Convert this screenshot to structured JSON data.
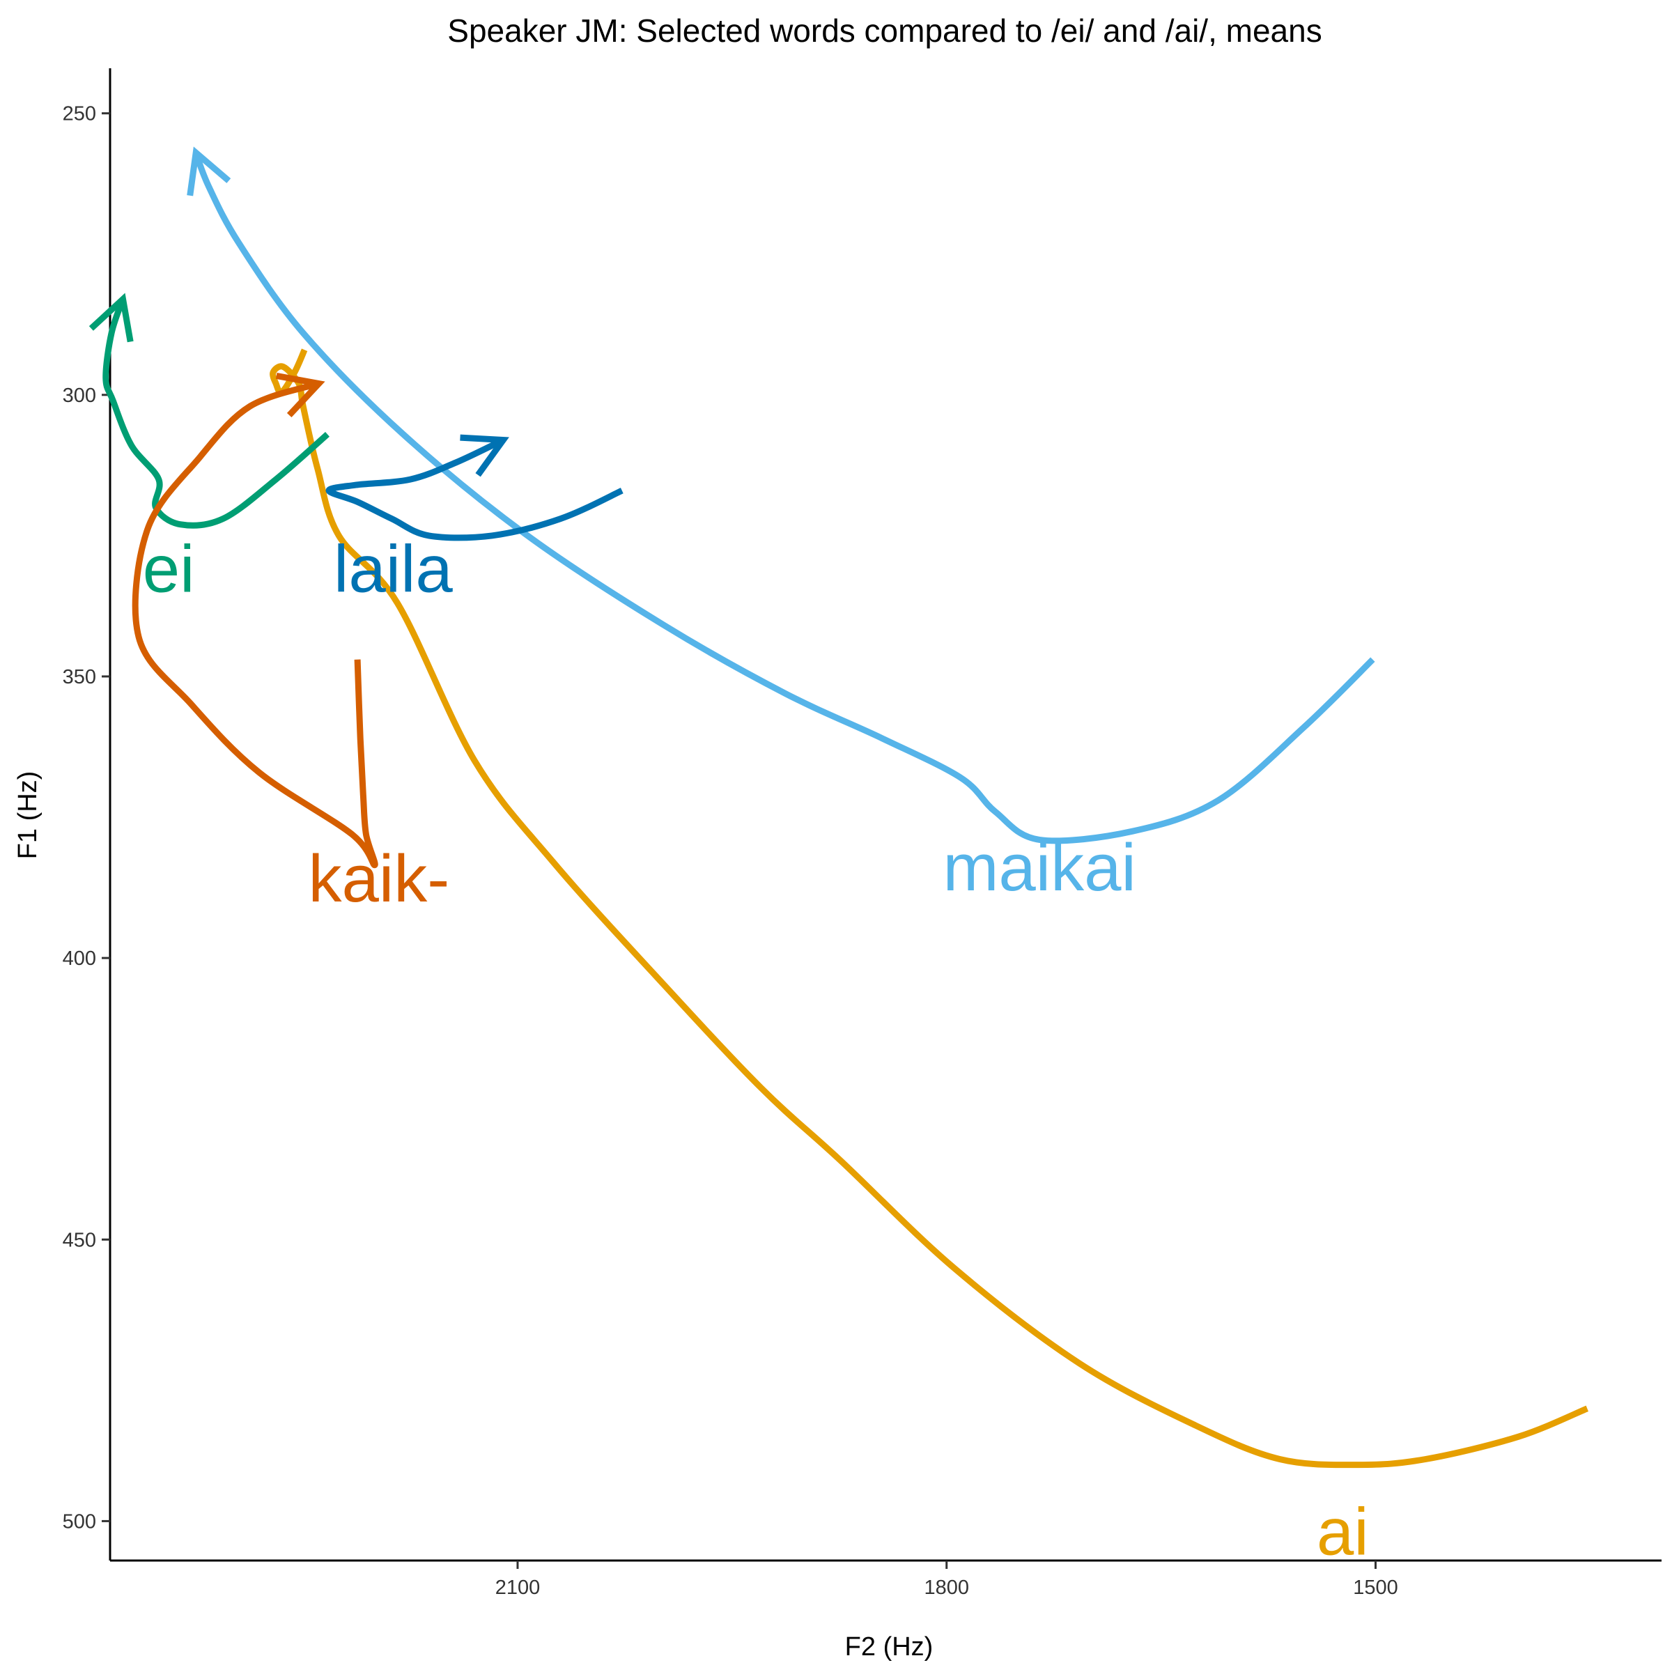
{
  "chart_data": {
    "type": "line",
    "title": "Speaker JM: Selected words compared to /ei/ and /ai/, means",
    "xlabel": "F2 (Hz)",
    "ylabel": "F1 (Hz)",
    "x_reversed": true,
    "y_reversed": true,
    "xlim": [
      2385,
      1300
    ],
    "ylim": [
      242,
      507
    ],
    "x_ticks": [
      2100,
      1800,
      1500
    ],
    "y_ticks": [
      250,
      300,
      350,
      400,
      450,
      500
    ],
    "grid": false,
    "legend": "none",
    "series": [
      {
        "name": "ai",
        "color": "#E69F00",
        "arrow": false,
        "label_at": [
          1523,
          502
        ],
        "points": [
          [
            2249,
            292
          ],
          [
            2256,
            296
          ],
          [
            2265,
            299.5
          ],
          [
            2269,
            298
          ],
          [
            2271,
            296
          ],
          [
            2264,
            295
          ],
          [
            2253,
            298
          ],
          [
            2250,
            302
          ],
          [
            2240,
            313
          ],
          [
            2225,
            325
          ],
          [
            2184,
            337
          ],
          [
            2130,
            365
          ],
          [
            2075,
            383
          ],
          [
            2004,
            403
          ],
          [
            1930,
            423
          ],
          [
            1874,
            436
          ],
          [
            1795,
            455
          ],
          [
            1707,
            472
          ],
          [
            1626,
            483
          ],
          [
            1567,
            489
          ],
          [
            1512,
            490
          ],
          [
            1465,
            489
          ],
          [
            1400,
            485
          ],
          [
            1352,
            480
          ]
        ]
      },
      {
        "name": "maikai",
        "color": "#56B4E9",
        "arrow": true,
        "label_at": [
          1735,
          384
        ],
        "points": [
          [
            1502,
            347
          ],
          [
            1550,
            359
          ],
          [
            1610,
            372
          ],
          [
            1670,
            377.5
          ],
          [
            1735,
            379
          ],
          [
            1766,
            374
          ],
          [
            1790,
            368
          ],
          [
            1845,
            361
          ],
          [
            1913,
            353
          ],
          [
            1997,
            341
          ],
          [
            2093,
            325
          ],
          [
            2180,
            307
          ],
          [
            2250,
            289
          ],
          [
            2295,
            273
          ],
          [
            2316,
            263
          ],
          [
            2325,
            257
          ]
        ]
      },
      {
        "name": "laila",
        "color": "#0072B2",
        "arrow": true,
        "label_at": [
          2187,
          331
        ],
        "points": [
          [
            2027,
            317
          ],
          [
            2070,
            322
          ],
          [
            2118,
            325
          ],
          [
            2162,
            325
          ],
          [
            2188,
            322
          ],
          [
            2212,
            319
          ],
          [
            2232,
            317
          ],
          [
            2213,
            316
          ],
          [
            2175,
            315
          ],
          [
            2143,
            312
          ],
          [
            2110,
            308
          ]
        ]
      },
      {
        "name": "ei",
        "color": "#009E73",
        "arrow": true,
        "label_at": [
          2344,
          331
        ],
        "points": [
          [
            2233,
            307
          ],
          [
            2269,
            315
          ],
          [
            2306,
            322
          ],
          [
            2336,
            323
          ],
          [
            2353,
            320
          ],
          [
            2351,
            315
          ],
          [
            2370,
            309
          ],
          [
            2383,
            301
          ],
          [
            2388,
            297
          ],
          [
            2384,
            289
          ],
          [
            2376,
            283
          ]
        ]
      },
      {
        "name": "kaik-",
        "color": "#D55E00",
        "arrow": true,
        "label_at": [
          2197,
          386
        ],
        "points": [
          [
            2212,
            347
          ],
          [
            2210,
            361
          ],
          [
            2208,
            371
          ],
          [
            2206,
            378
          ],
          [
            2200,
            383.5
          ],
          [
            2216,
            378
          ],
          [
            2281,
            367
          ],
          [
            2328,
            355
          ],
          [
            2365,
            343
          ],
          [
            2359,
            324
          ],
          [
            2322,
            311
          ],
          [
            2287,
            302
          ],
          [
            2239,
            298
          ]
        ]
      }
    ]
  }
}
